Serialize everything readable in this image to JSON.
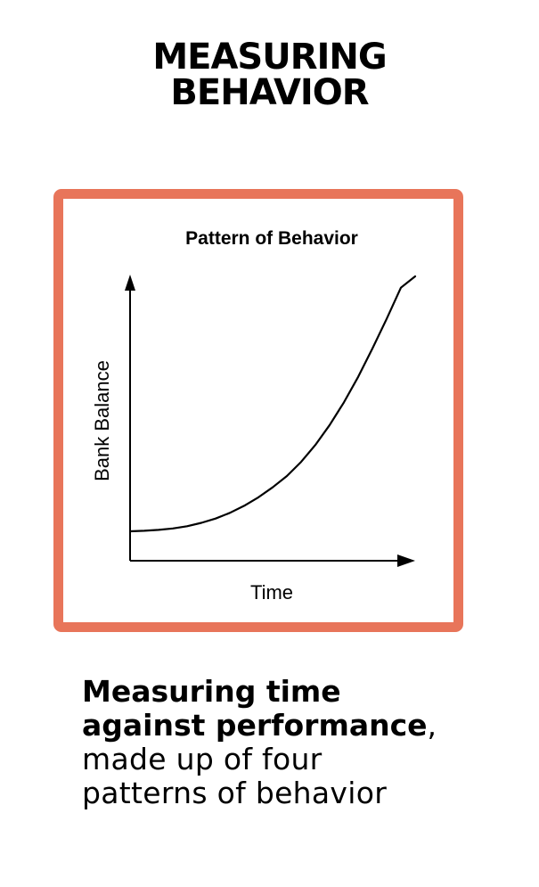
{
  "page": {
    "title_line1": "MEASURING",
    "title_line2": "BEHAVIOR"
  },
  "chart_data": {
    "type": "line",
    "title": "Pattern of Behavior",
    "xlabel": "Time",
    "ylabel": "Bank Balance",
    "grid": false,
    "axis_ticks": false,
    "xlim": [
      0,
      10
    ],
    "ylim": [
      0,
      10
    ],
    "series": [
      {
        "values": [
          {
            "x": 0.0,
            "y": 1.0
          },
          {
            "x": 0.5,
            "y": 1.02
          },
          {
            "x": 1.0,
            "y": 1.05
          },
          {
            "x": 1.5,
            "y": 1.1
          },
          {
            "x": 2.0,
            "y": 1.18
          },
          {
            "x": 2.5,
            "y": 1.3
          },
          {
            "x": 3.0,
            "y": 1.45
          },
          {
            "x": 3.5,
            "y": 1.65
          },
          {
            "x": 4.0,
            "y": 1.9
          },
          {
            "x": 4.5,
            "y": 2.2
          },
          {
            "x": 5.0,
            "y": 2.55
          },
          {
            "x": 5.5,
            "y": 2.95
          },
          {
            "x": 6.0,
            "y": 3.45
          },
          {
            "x": 6.5,
            "y": 4.05
          },
          {
            "x": 7.0,
            "y": 4.75
          },
          {
            "x": 7.5,
            "y": 5.55
          },
          {
            "x": 8.0,
            "y": 6.45
          },
          {
            "x": 8.5,
            "y": 7.45
          },
          {
            "x": 9.0,
            "y": 8.5
          },
          {
            "x": 9.5,
            "y": 9.6
          },
          {
            "x": 10.0,
            "y": 10.0
          }
        ],
        "color": "#000000"
      }
    ]
  },
  "caption": {
    "bold_line1": "Measuring time",
    "bold_line2": "against performance",
    "comma": ",",
    "line3": "made up of four",
    "line4": "patterns of behavior"
  },
  "colors": {
    "frame": "#E8755A",
    "line": "#000000",
    "background": "#FFFFFF"
  }
}
